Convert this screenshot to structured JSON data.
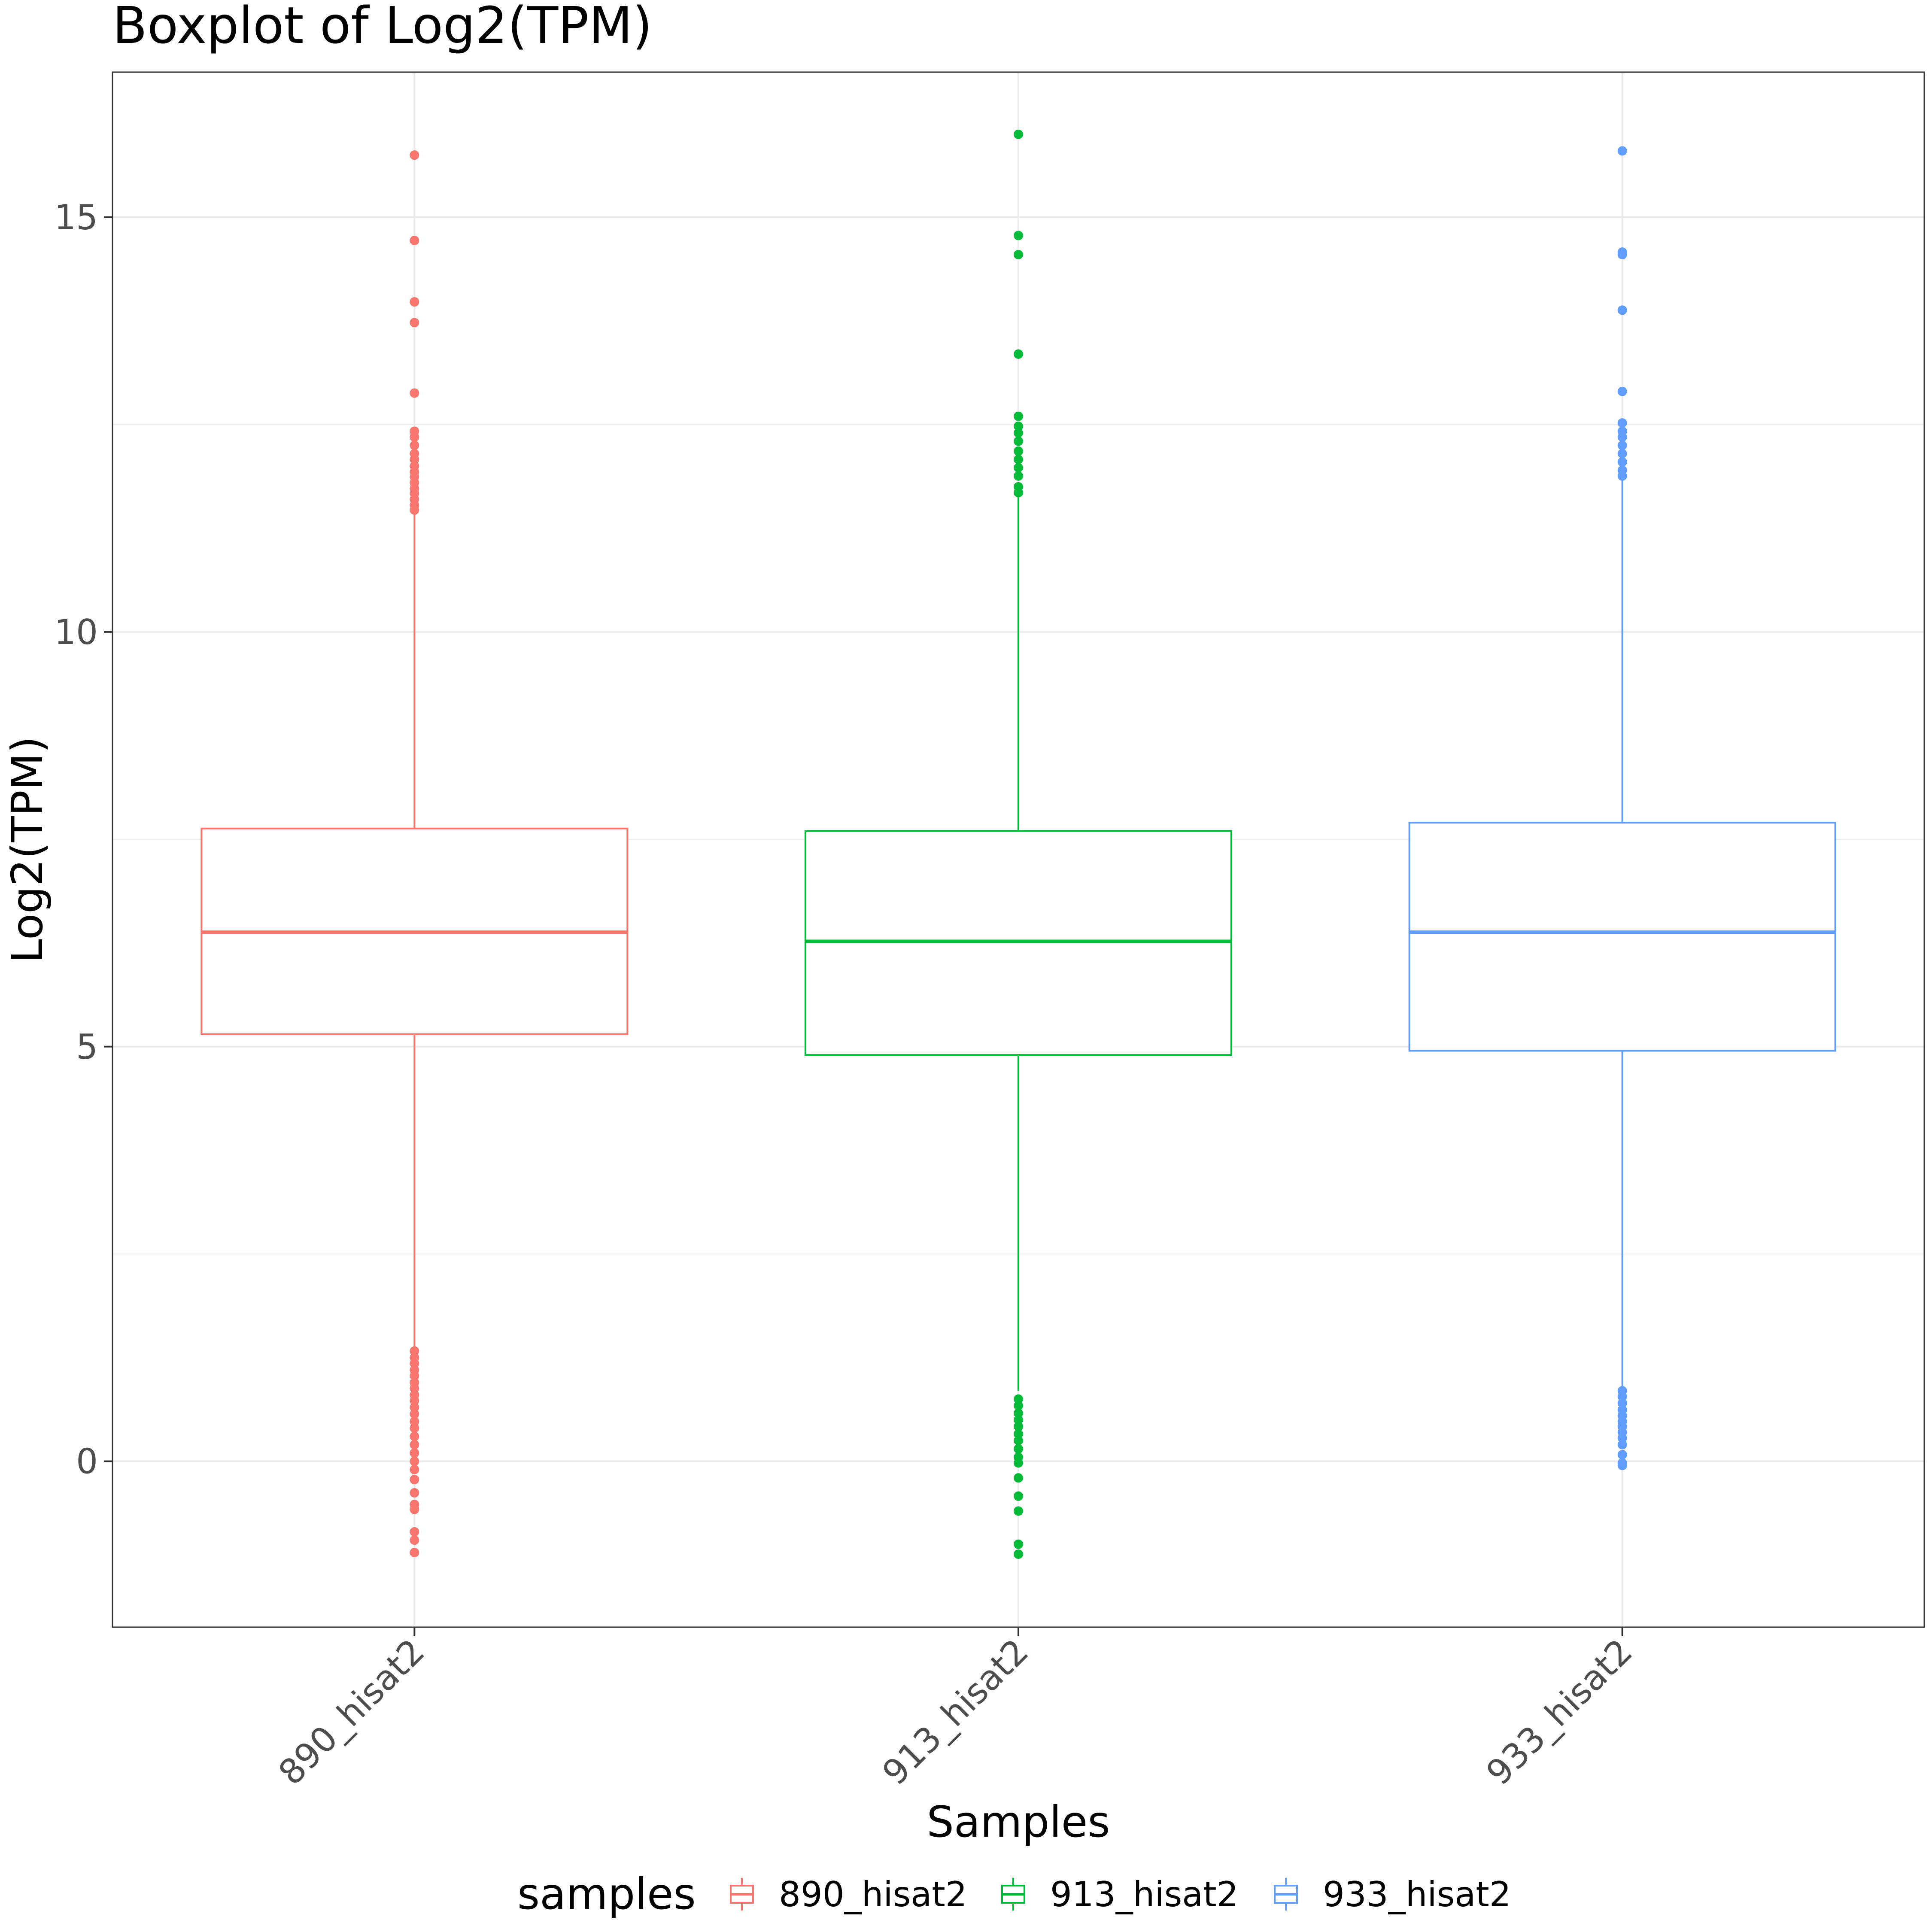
{
  "chart_data": {
    "type": "boxplot",
    "title": "Boxplot of Log2(TPM)",
    "xlabel": "Samples",
    "ylabel": "Log2(TPM)",
    "categories": [
      "890_hisat2",
      "913_hisat2",
      "933_hisat2"
    ],
    "ylim": [
      -2,
      16.75
    ],
    "yticks": [
      0,
      5,
      10,
      15
    ],
    "grid": true,
    "legend": {
      "title": "samples",
      "position": "bottom",
      "entries": [
        "890_hisat2",
        "913_hisat2",
        "933_hisat2"
      ]
    },
    "series": [
      {
        "name": "890_hisat2",
        "color": "#F8766D",
        "q1": 5.15,
        "median": 6.38,
        "q3": 7.63,
        "whisker_low": 1.38,
        "whisker_high": 11.42,
        "outliers_high": [
          15.75,
          14.72,
          13.98,
          13.73,
          12.88,
          12.42,
          12.35,
          12.25,
          12.15,
          12.08,
          12.0,
          11.93,
          11.87,
          11.8,
          11.73,
          11.67,
          11.6,
          11.53,
          11.47
        ],
        "outliers_low": [
          1.33,
          1.25,
          1.18,
          1.1,
          1.03,
          0.95,
          0.88,
          0.8,
          0.73,
          0.65,
          0.57,
          0.48,
          0.4,
          0.3,
          0.2,
          0.1,
          0.0,
          -0.1,
          -0.22,
          -0.38,
          -0.52,
          -0.58,
          -0.85,
          -0.95,
          -1.1
        ]
      },
      {
        "name": "913_hisat2",
        "color": "#00BA38",
        "q1": 4.9,
        "median": 6.27,
        "q3": 7.6,
        "whisker_low": 0.85,
        "whisker_high": 11.65,
        "outliers_high": [
          16.0,
          14.78,
          14.55,
          13.35,
          12.6,
          12.48,
          12.4,
          12.3,
          12.18,
          12.08,
          11.98,
          11.88,
          11.75,
          11.68
        ],
        "outliers_low": [
          0.75,
          0.67,
          0.58,
          0.5,
          0.42,
          0.33,
          0.25,
          0.15,
          0.05,
          -0.02,
          -0.2,
          -0.42,
          -0.6,
          -1.0,
          -1.12
        ]
      },
      {
        "name": "933_hisat2",
        "color": "#619CFF",
        "q1": 4.95,
        "median": 6.38,
        "q3": 7.7,
        "whisker_low": 0.9,
        "whisker_high": 11.85,
        "outliers_high": [
          15.8,
          14.58,
          14.55,
          13.88,
          12.9,
          12.52,
          12.42,
          12.35,
          12.25,
          12.15,
          12.05,
          11.95,
          11.88
        ],
        "outliers_low": [
          0.85,
          0.78,
          0.7,
          0.62,
          0.55,
          0.48,
          0.42,
          0.35,
          0.28,
          0.2,
          0.08,
          -0.02,
          -0.05
        ]
      }
    ]
  }
}
